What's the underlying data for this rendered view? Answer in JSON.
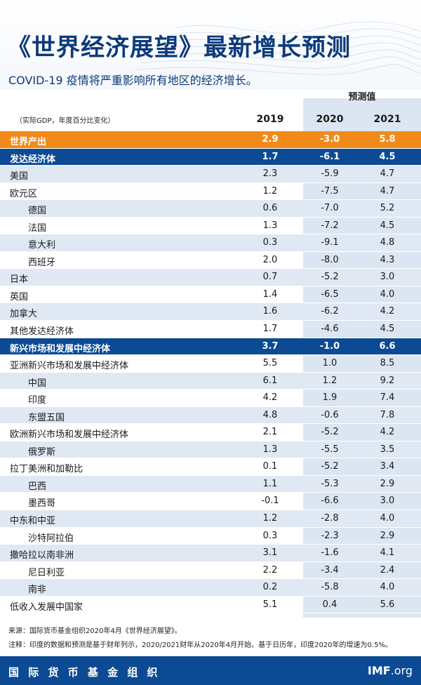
{
  "title": "《世界经济展望》最新增长预测",
  "subtitle": "COVID-19 疫情将严重影响所有地区的经济增长。",
  "forecast_label": "预测值",
  "unit_label": "（实际GDP，年度百分比变化）",
  "years": [
    "2019",
    "2020",
    "2021"
  ],
  "rows": [
    {
      "label": "世界产出",
      "v2019": "2.9",
      "v2020": "-3.0",
      "v2021": "5.8"
    },
    {
      "label": "发达经济体",
      "v2019": "1.7",
      "v2020": "-6.1",
      "v2021": "4.5"
    },
    {
      "label": "美国",
      "v2019": "2.3",
      "v2020": "-5.9",
      "v2021": "4.7"
    },
    {
      "label": "欧元区",
      "v2019": "1.2",
      "v2020": "-7.5",
      "v2021": "4.7"
    },
    {
      "label": "德国",
      "v2019": "0.6",
      "v2020": "-7.0",
      "v2021": "5.2"
    },
    {
      "label": "法国",
      "v2019": "1.3",
      "v2020": "-7.2",
      "v2021": "4.5"
    },
    {
      "label": "意大利",
      "v2019": "0.3",
      "v2020": "-9.1",
      "v2021": "4.8"
    },
    {
      "label": "西班牙",
      "v2019": "2.0",
      "v2020": "-8.0",
      "v2021": "4.3"
    },
    {
      "label": "日本",
      "v2019": "0.7",
      "v2020": "-5.2",
      "v2021": "3.0"
    },
    {
      "label": "英国",
      "v2019": "1.4",
      "v2020": "-6.5",
      "v2021": "4.0"
    },
    {
      "label": "加拿大",
      "v2019": "1.6",
      "v2020": "-6.2",
      "v2021": "4.2"
    },
    {
      "label": "其他发达经济体",
      "v2019": "1.7",
      "v2020": "-4.6",
      "v2021": "4.5"
    },
    {
      "label": "新兴市场和发展中经济体",
      "v2019": "3.7",
      "v2020": "-1.0",
      "v2021": "6.6"
    },
    {
      "label": "亚洲新兴市场和发展中经济体",
      "v2019": "5.5",
      "v2020": "1.0",
      "v2021": "8.5"
    },
    {
      "label": "中国",
      "v2019": "6.1",
      "v2020": "1.2",
      "v2021": "9.2"
    },
    {
      "label": "印度",
      "v2019": "4.2",
      "v2020": "1.9",
      "v2021": "7.4"
    },
    {
      "label": "东盟五国",
      "v2019": "4.8",
      "v2020": "-0.6",
      "v2021": "7.8"
    },
    {
      "label": "欧洲新兴市场和发展中经济体",
      "v2019": "2.1",
      "v2020": "-5.2",
      "v2021": "4.2"
    },
    {
      "label": "俄罗斯",
      "v2019": "1.3",
      "v2020": "-5.5",
      "v2021": "3.5"
    },
    {
      "label": "拉丁美洲和加勒比",
      "v2019": "0.1",
      "v2020": "-5.2",
      "v2021": "3.4"
    },
    {
      "label": "巴西",
      "v2019": "1.1",
      "v2020": "-5.3",
      "v2021": "2.9"
    },
    {
      "label": "墨西哥",
      "v2019": "-0.1",
      "v2020": "-6.6",
      "v2021": "3.0"
    },
    {
      "label": "中东和中亚",
      "v2019": "1.2",
      "v2020": "-2.8",
      "v2021": "4.0"
    },
    {
      "label": "沙特阿拉伯",
      "v2019": "0.3",
      "v2020": "-2.3",
      "v2021": "2.9"
    },
    {
      "label": "撒哈拉以南非洲",
      "v2019": "3.1",
      "v2020": "-1.6",
      "v2021": "4.1"
    },
    {
      "label": "尼日利亚",
      "v2019": "2.2",
      "v2020": "-3.4",
      "v2021": "2.4"
    },
    {
      "label": "南非",
      "v2019": "0.2",
      "v2020": "-5.8",
      "v2021": "4.0"
    },
    {
      "label": "低收入发展中国家",
      "v2019": "5.1",
      "v2020": "0.4",
      "v2021": "5.6"
    }
  ],
  "source_note": "来源：国际货币基金组织2020年4月《世界经济展望》。",
  "footnote": "注释：印度的数据和预测是基于财年列示，2020/2021财年从2020年4月开始。基于日历年，印度2020年的增速为0.5%。",
  "footer": {
    "org_name": "国 际 货 币 基 金 组 织",
    "site_bold": "IMF",
    "site_rest": ".org"
  },
  "colors": {
    "navy": "#0c4b94",
    "orange": "#f28a1a",
    "stripe": "#dfe8f3",
    "forecast_band": "#dce6f2"
  }
}
